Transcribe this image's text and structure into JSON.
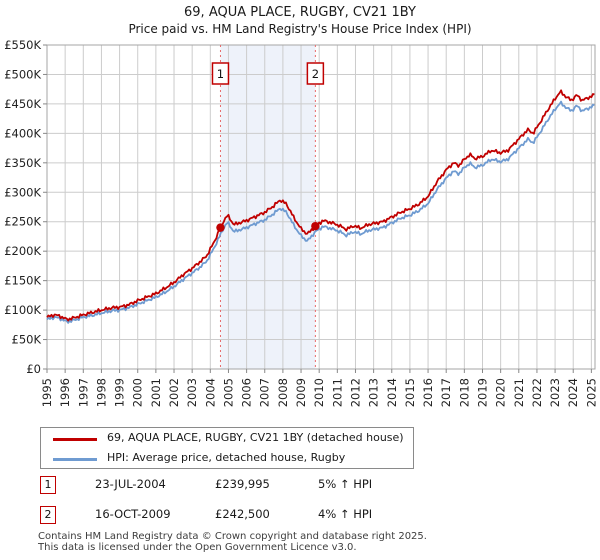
{
  "title": "69, AQUA PLACE, RUGBY, CV21 1BY",
  "subtitle": "Price paid vs. HM Land Registry's House Price Index (HPI)",
  "colors": {
    "property_line": "#c00000",
    "hpi_line": "#6f9bd1",
    "grid": "#cccccc",
    "plot_border": "#a5a5a5",
    "band_fill": "#eef2fa",
    "sale_dashed_line": "#e86a6a",
    "marker_box_border": "#c00000",
    "tick_text": "#222222",
    "footer_text": "#3d3d3d"
  },
  "chart_data": {
    "type": "line",
    "title": "69, AQUA PLACE, RUGBY, CV21 1BY — Price paid vs. HPI",
    "xlabel": "",
    "ylabel": "",
    "units": "GBP thousands",
    "ylim": [
      0,
      550000
    ],
    "x_range": [
      1995,
      2025.2
    ],
    "grid": true,
    "legend_position": "bottom",
    "y_tick_values": [
      0,
      50,
      100,
      150,
      200,
      250,
      300,
      350,
      400,
      450,
      500,
      550
    ],
    "y_tick_labels": [
      "£0",
      "£50K",
      "£100K",
      "£150K",
      "£200K",
      "£250K",
      "£300K",
      "£350K",
      "£400K",
      "£450K",
      "£500K",
      "£550K"
    ],
    "x_ticks": [
      1995,
      1996,
      1997,
      1998,
      1999,
      2000,
      2001,
      2002,
      2003,
      2004,
      2005,
      2006,
      2007,
      2008,
      2009,
      2010,
      2011,
      2012,
      2013,
      2014,
      2015,
      2016,
      2017,
      2018,
      2019,
      2020,
      2021,
      2022,
      2023,
      2024,
      2025
    ],
    "band": [
      2004.56,
      2009.79
    ],
    "series": [
      {
        "name": "69, AQUA PLACE, RUGBY, CV21 1BY (detached house)",
        "color": "#c00000",
        "points": [
          [
            1995,
            88
          ],
          [
            1995.4,
            92
          ],
          [
            1995.7,
            90
          ],
          [
            1996.1,
            84
          ],
          [
            1996.5,
            87
          ],
          [
            1997,
            92
          ],
          [
            1997.5,
            96
          ],
          [
            1998,
            100
          ],
          [
            1998.6,
            104
          ],
          [
            1999,
            105
          ],
          [
            1999.5,
            109
          ],
          [
            2000,
            116
          ],
          [
            2000.5,
            122
          ],
          [
            2001,
            128
          ],
          [
            2001.5,
            137
          ],
          [
            2002,
            147
          ],
          [
            2002.5,
            160
          ],
          [
            2003,
            171
          ],
          [
            2003.4,
            181
          ],
          [
            2003.8,
            192
          ],
          [
            2004.2,
            215
          ],
          [
            2004.56,
            240
          ],
          [
            2004.75,
            252
          ],
          [
            2004.95,
            261
          ],
          [
            2005.3,
            245
          ],
          [
            2005.7,
            249
          ],
          [
            2006,
            252
          ],
          [
            2006.5,
            259
          ],
          [
            2007,
            266
          ],
          [
            2007.5,
            277
          ],
          [
            2007.85,
            287
          ],
          [
            2008.2,
            280
          ],
          [
            2008.6,
            257
          ],
          [
            2009,
            238
          ],
          [
            2009.35,
            229
          ],
          [
            2009.79,
            242.5
          ],
          [
            2010.2,
            252
          ],
          [
            2010.6,
            249
          ],
          [
            2011,
            245
          ],
          [
            2011.5,
            237
          ],
          [
            2011.9,
            243
          ],
          [
            2012.3,
            239
          ],
          [
            2012.7,
            245
          ],
          [
            2013,
            247
          ],
          [
            2013.5,
            250
          ],
          [
            2014,
            258
          ],
          [
            2014.5,
            266
          ],
          [
            2015,
            272
          ],
          [
            2015.5,
            280
          ],
          [
            2016,
            293
          ],
          [
            2016.5,
            318
          ],
          [
            2017,
            338
          ],
          [
            2017.4,
            350
          ],
          [
            2017.7,
            345
          ],
          [
            2018,
            356
          ],
          [
            2018.3,
            364
          ],
          [
            2018.6,
            357
          ],
          [
            2019,
            361
          ],
          [
            2019.5,
            371
          ],
          [
            2020,
            367
          ],
          [
            2020.4,
            371
          ],
          [
            2020.8,
            384
          ],
          [
            2021.2,
            397
          ],
          [
            2021.5,
            406
          ],
          [
            2021.8,
            400
          ],
          [
            2022.2,
            420
          ],
          [
            2022.6,
            440
          ],
          [
            2023,
            459
          ],
          [
            2023.3,
            471
          ],
          [
            2023.6,
            462
          ],
          [
            2023.9,
            456
          ],
          [
            2024.2,
            465
          ],
          [
            2024.5,
            456
          ],
          [
            2024.8,
            460
          ],
          [
            2025.2,
            466
          ]
        ]
      },
      {
        "name": "HPI: Average price, detached house, Rugby",
        "color": "#6f9bd1",
        "points": [
          [
            1995,
            84
          ],
          [
            1995.4,
            88
          ],
          [
            1995.7,
            86
          ],
          [
            1996.1,
            80
          ],
          [
            1996.5,
            83
          ],
          [
            1997,
            88
          ],
          [
            1997.5,
            91
          ],
          [
            1998,
            95
          ],
          [
            1998.6,
            99
          ],
          [
            1999,
            100
          ],
          [
            1999.5,
            104
          ],
          [
            2000,
            110
          ],
          [
            2000.5,
            116
          ],
          [
            2001,
            122
          ],
          [
            2001.5,
            130
          ],
          [
            2002,
            140
          ],
          [
            2002.5,
            152
          ],
          [
            2003,
            163
          ],
          [
            2003.4,
            172
          ],
          [
            2003.8,
            183
          ],
          [
            2004.2,
            205
          ],
          [
            2004.56,
            228.5
          ],
          [
            2004.75,
            240
          ],
          [
            2004.95,
            249
          ],
          [
            2005.3,
            233
          ],
          [
            2005.7,
            237
          ],
          [
            2006,
            240
          ],
          [
            2006.5,
            247
          ],
          [
            2007,
            253
          ],
          [
            2007.5,
            264
          ],
          [
            2007.85,
            273
          ],
          [
            2008.2,
            266
          ],
          [
            2008.6,
            244
          ],
          [
            2009,
            226
          ],
          [
            2009.35,
            217
          ],
          [
            2009.79,
            233
          ],
          [
            2010.2,
            242
          ],
          [
            2010.6,
            239
          ],
          [
            2011,
            235
          ],
          [
            2011.5,
            227
          ],
          [
            2011.9,
            233
          ],
          [
            2012.3,
            229
          ],
          [
            2012.7,
            235
          ],
          [
            2013,
            237
          ],
          [
            2013.5,
            240
          ],
          [
            2014,
            248
          ],
          [
            2014.5,
            256
          ],
          [
            2015,
            261
          ],
          [
            2015.5,
            269
          ],
          [
            2016,
            281
          ],
          [
            2016.5,
            305
          ],
          [
            2017,
            324
          ],
          [
            2017.4,
            336
          ],
          [
            2017.7,
            331
          ],
          [
            2018,
            342
          ],
          [
            2018.3,
            349
          ],
          [
            2018.6,
            342
          ],
          [
            2019,
            346
          ],
          [
            2019.5,
            356
          ],
          [
            2020,
            352
          ],
          [
            2020.4,
            356
          ],
          [
            2020.8,
            369
          ],
          [
            2021.2,
            381
          ],
          [
            2021.5,
            390
          ],
          [
            2021.8,
            384
          ],
          [
            2022.2,
            403
          ],
          [
            2022.6,
            423
          ],
          [
            2023,
            441
          ],
          [
            2023.3,
            452
          ],
          [
            2023.6,
            444
          ],
          [
            2023.9,
            438
          ],
          [
            2024.2,
            447
          ],
          [
            2024.5,
            438
          ],
          [
            2024.8,
            442
          ],
          [
            2025.2,
            448
          ]
        ]
      }
    ],
    "sales": [
      {
        "label": "1",
        "year": 2004.56,
        "price_k": 240.0
      },
      {
        "label": "2",
        "year": 2009.79,
        "price_k": 242.5
      }
    ]
  },
  "legend": {
    "items": [
      {
        "label": "69, AQUA PLACE, RUGBY, CV21 1BY (detached house)",
        "color": "#c00000"
      },
      {
        "label": "HPI: Average price, detached house, Rugby",
        "color": "#6f9bd1"
      }
    ]
  },
  "annotations": [
    {
      "num": "1",
      "date": "23-JUL-2004",
      "price": "£239,995",
      "hpi": "5% ↑ HPI"
    },
    {
      "num": "2",
      "date": "16-OCT-2009",
      "price": "£242,500",
      "hpi": "4% ↑ HPI"
    }
  ],
  "footer": {
    "line1": "Contains HM Land Registry data © Crown copyright and database right 2025.",
    "line2": "This data is licensed under the Open Government Licence v3.0."
  }
}
